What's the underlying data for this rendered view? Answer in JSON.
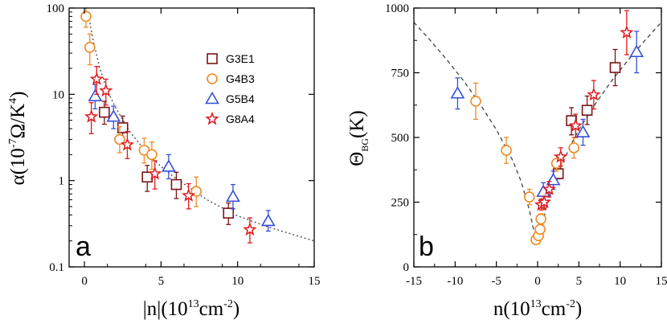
{
  "colors": {
    "G3E1": "#7a1416",
    "G4B3": "#ef8a22",
    "G5B4": "#3450d8",
    "G8A4": "#e0171d",
    "fit": "#444444"
  },
  "legend": [
    {
      "key": "G3E1",
      "label": "G3E1",
      "marker": "square"
    },
    {
      "key": "G4B3",
      "label": "G4B3",
      "marker": "circle"
    },
    {
      "key": "G5B4",
      "label": "G5B4",
      "marker": "triangle"
    },
    {
      "key": "G8A4",
      "label": "G8A4",
      "marker": "star"
    }
  ],
  "chart_data": [
    {
      "type": "scatter",
      "panel": "a",
      "yscale": "log",
      "xlabel_text": "|n|",
      "xunit_base": "(10",
      "xunit_exp": "13",
      "xunit_rest": "cm",
      "xunit_exp2": "-2",
      "xunit_close": ")",
      "ylabel_text": "α(10",
      "yunit_exp": "-7",
      "yunit_mid": "Ω/K",
      "yunit_exp2": "4",
      "yunit_close": ")",
      "xlim": [
        -1,
        15
      ],
      "ylim": [
        0.1,
        100
      ],
      "xticks": [
        0,
        5,
        10,
        15
      ],
      "yticks": [
        0.1,
        1,
        10,
        100
      ],
      "ytick_labels": [
        "0.1",
        "1",
        "10",
        "100"
      ],
      "series": [
        {
          "name": "G3E1",
          "points": [
            {
              "x": 1.3,
              "y": 6.2,
              "lo": 4.5,
              "hi": 8.3
            },
            {
              "x": 2.5,
              "y": 4.1,
              "lo": 2.9,
              "hi": 5.6
            },
            {
              "x": 4.1,
              "y": 1.1,
              "lo": 0.75,
              "hi": 1.5
            },
            {
              "x": 6.0,
              "y": 0.9,
              "lo": 0.62,
              "hi": 1.25
            },
            {
              "x": 9.4,
              "y": 0.42,
              "lo": 0.31,
              "hi": 0.55
            }
          ]
        },
        {
          "name": "G4B3",
          "points": [
            {
              "x": 0.1,
              "y": 80,
              "lo": 60,
              "hi": 100
            },
            {
              "x": 0.35,
              "y": 35,
              "lo": 22,
              "hi": 50
            },
            {
              "x": 2.3,
              "y": 3.0,
              "lo": 2.1,
              "hi": 4.2
            },
            {
              "x": 3.9,
              "y": 2.25,
              "lo": 1.6,
              "hi": 3.1
            },
            {
              "x": 4.4,
              "y": 2.0,
              "lo": 1.35,
              "hi": 2.8
            },
            {
              "x": 7.3,
              "y": 0.75,
              "lo": 0.5,
              "hi": 1.1
            }
          ]
        },
        {
          "name": "G5B4",
          "points": [
            {
              "x": 0.7,
              "y": 9.5,
              "lo": 6.8,
              "hi": 13
            },
            {
              "x": 1.9,
              "y": 5.5,
              "lo": 4.0,
              "hi": 7.3
            },
            {
              "x": 5.5,
              "y": 1.45,
              "lo": 1.05,
              "hi": 2.0
            },
            {
              "x": 9.7,
              "y": 0.65,
              "lo": 0.47,
              "hi": 0.9
            },
            {
              "x": 12.0,
              "y": 0.34,
              "lo": 0.26,
              "hi": 0.45
            }
          ]
        },
        {
          "name": "G8A4",
          "points": [
            {
              "x": 0.45,
              "y": 5.5,
              "lo": 3.5,
              "hi": 8.0
            },
            {
              "x": 0.8,
              "y": 15,
              "lo": 10,
              "hi": 21
            },
            {
              "x": 1.4,
              "y": 11,
              "lo": 7.5,
              "hi": 15
            },
            {
              "x": 2.8,
              "y": 2.6,
              "lo": 1.8,
              "hi": 3.7
            },
            {
              "x": 4.6,
              "y": 1.2,
              "lo": 0.8,
              "hi": 1.7
            },
            {
              "x": 6.8,
              "y": 0.67,
              "lo": 0.47,
              "hi": 0.92
            },
            {
              "x": 10.8,
              "y": 0.27,
              "lo": 0.19,
              "hi": 0.37
            }
          ]
        }
      ],
      "fit": [
        [
          0.3,
          75
        ],
        [
          0.6,
          40
        ],
        [
          1.0,
          20
        ],
        [
          1.5,
          11
        ],
        [
          2.0,
          7.2
        ],
        [
          3.0,
          3.6
        ],
        [
          4.0,
          2.2
        ],
        [
          5.0,
          1.45
        ],
        [
          6.0,
          1.05
        ],
        [
          8.0,
          0.6
        ],
        [
          10.0,
          0.39
        ],
        [
          12.0,
          0.29
        ],
        [
          15.0,
          0.2
        ]
      ]
    },
    {
      "type": "scatter",
      "panel": "b",
      "xlabel_text": "n(10",
      "xunit_exp": "13",
      "xunit_rest": "cm",
      "xunit_exp2": "-2",
      "xunit_close": ")",
      "ylabel_theta": "Θ",
      "ylabel_sub": "BG",
      "ylabel_unit": "(K)",
      "xlim": [
        -15,
        15
      ],
      "ylim": [
        0,
        1000
      ],
      "xticks": [
        -15,
        -10,
        -5,
        0,
        5,
        10,
        15
      ],
      "yticks": [
        0,
        250,
        500,
        750,
        1000
      ],
      "series": [
        {
          "name": "G3E1",
          "points": [
            {
              "x": 2.5,
              "y": 360,
              "lo": 340,
              "hi": 385
            },
            {
              "x": 4.1,
              "y": 565,
              "lo": 510,
              "hi": 615
            },
            {
              "x": 6.0,
              "y": 605,
              "lo": 550,
              "hi": 660
            },
            {
              "x": 9.4,
              "y": 770,
              "lo": 700,
              "hi": 840
            }
          ]
        },
        {
          "name": "G4B3",
          "points": [
            {
              "x": -7.5,
              "y": 640,
              "lo": 570,
              "hi": 710
            },
            {
              "x": -3.8,
              "y": 450,
              "lo": 400,
              "hi": 500
            },
            {
              "x": -1.0,
              "y": 270,
              "lo": 240,
              "hi": 300
            },
            {
              "x": -0.2,
              "y": 105,
              "lo": 90,
              "hi": 120
            },
            {
              "x": 0.1,
              "y": 120,
              "lo": 105,
              "hi": 140
            },
            {
              "x": 0.3,
              "y": 145,
              "lo": 130,
              "hi": 160
            },
            {
              "x": 0.4,
              "y": 185,
              "lo": 165,
              "hi": 205
            },
            {
              "x": 2.3,
              "y": 400,
              "lo": 370,
              "hi": 430
            },
            {
              "x": 4.4,
              "y": 460,
              "lo": 420,
              "hi": 500
            }
          ]
        },
        {
          "name": "G5B4",
          "points": [
            {
              "x": -9.7,
              "y": 670,
              "lo": 610,
              "hi": 730
            },
            {
              "x": 0.7,
              "y": 290,
              "lo": 255,
              "hi": 325
            },
            {
              "x": 1.9,
              "y": 335,
              "lo": 300,
              "hi": 370
            },
            {
              "x": 5.5,
              "y": 520,
              "lo": 470,
              "hi": 570
            },
            {
              "x": 12.0,
              "y": 830,
              "lo": 750,
              "hi": 910
            }
          ]
        },
        {
          "name": "G8A4",
          "points": [
            {
              "x": 0.45,
              "y": 240,
              "lo": 220,
              "hi": 262
            },
            {
              "x": 0.8,
              "y": 250,
              "lo": 228,
              "hi": 272
            },
            {
              "x": 1.4,
              "y": 300,
              "lo": 270,
              "hi": 330
            },
            {
              "x": 2.8,
              "y": 425,
              "lo": 390,
              "hi": 460
            },
            {
              "x": 4.6,
              "y": 545,
              "lo": 500,
              "hi": 590
            },
            {
              "x": 6.8,
              "y": 665,
              "lo": 610,
              "hi": 720
            },
            {
              "x": 10.8,
              "y": 905,
              "lo": 820,
              "hi": 990
            }
          ]
        }
      ],
      "fit": [
        [
          -15,
          945
        ],
        [
          -13,
          875
        ],
        [
          -11,
          800
        ],
        [
          -9,
          720
        ],
        [
          -7,
          630
        ],
        [
          -5,
          530
        ],
        [
          -4,
          470
        ],
        [
          -3,
          410
        ],
        [
          -2,
          330
        ],
        [
          -1,
          220
        ],
        [
          -0.5,
          145
        ],
        [
          0,
          95
        ],
        [
          0.5,
          150
        ],
        [
          1,
          225
        ],
        [
          2,
          320
        ],
        [
          3,
          400
        ],
        [
          4,
          470
        ],
        [
          5,
          530
        ],
        [
          7,
          630
        ],
        [
          9,
          720
        ],
        [
          11,
          800
        ],
        [
          13,
          875
        ],
        [
          15,
          945
        ]
      ]
    }
  ]
}
